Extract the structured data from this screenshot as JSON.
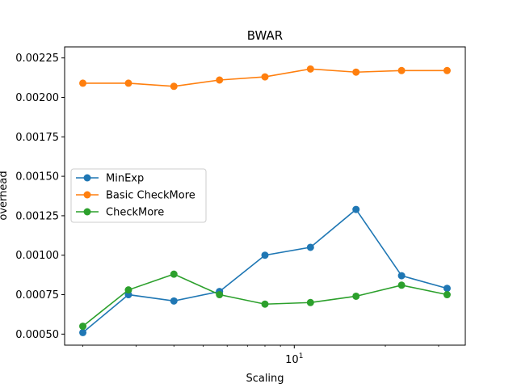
{
  "chart_data": {
    "type": "line",
    "title": "BWAR",
    "xlabel": "Scaling",
    "ylabel": "overhead",
    "x_scale": "log",
    "x": [
      2,
      2.83,
      4,
      5.66,
      8,
      11.31,
      16,
      22.63,
      32
    ],
    "x_ticks": [
      10
    ],
    "x_tick_labels": [
      "10^1"
    ],
    "ylim": [
      0.00043,
      0.00232
    ],
    "y_ticks": [
      0.0005,
      0.00075,
      0.001,
      0.00125,
      0.0015,
      0.00175,
      0.002,
      0.00225
    ],
    "y_tick_labels": [
      "0.00050",
      "0.00075",
      "0.00100",
      "0.00125",
      "0.00150",
      "0.00175",
      "0.00200",
      "0.00225"
    ],
    "grid": false,
    "legend_position": "center-left",
    "series": [
      {
        "name": "MinExp",
        "color": "#1f77b4",
        "values": [
          0.00051,
          0.00075,
          0.00071,
          0.00077,
          0.001,
          0.00105,
          0.00129,
          0.00087,
          0.00079
        ]
      },
      {
        "name": "Basic CheckMore",
        "color": "#ff7f0e",
        "values": [
          0.00209,
          0.00209,
          0.00207,
          0.00211,
          0.00213,
          0.00218,
          0.00216,
          0.00217,
          0.00217
        ]
      },
      {
        "name": "CheckMore",
        "color": "#2ca02c",
        "values": [
          0.00055,
          0.00078,
          0.00088,
          0.00075,
          0.00069,
          0.0007,
          0.00074,
          0.00081,
          0.00075
        ]
      }
    ]
  }
}
